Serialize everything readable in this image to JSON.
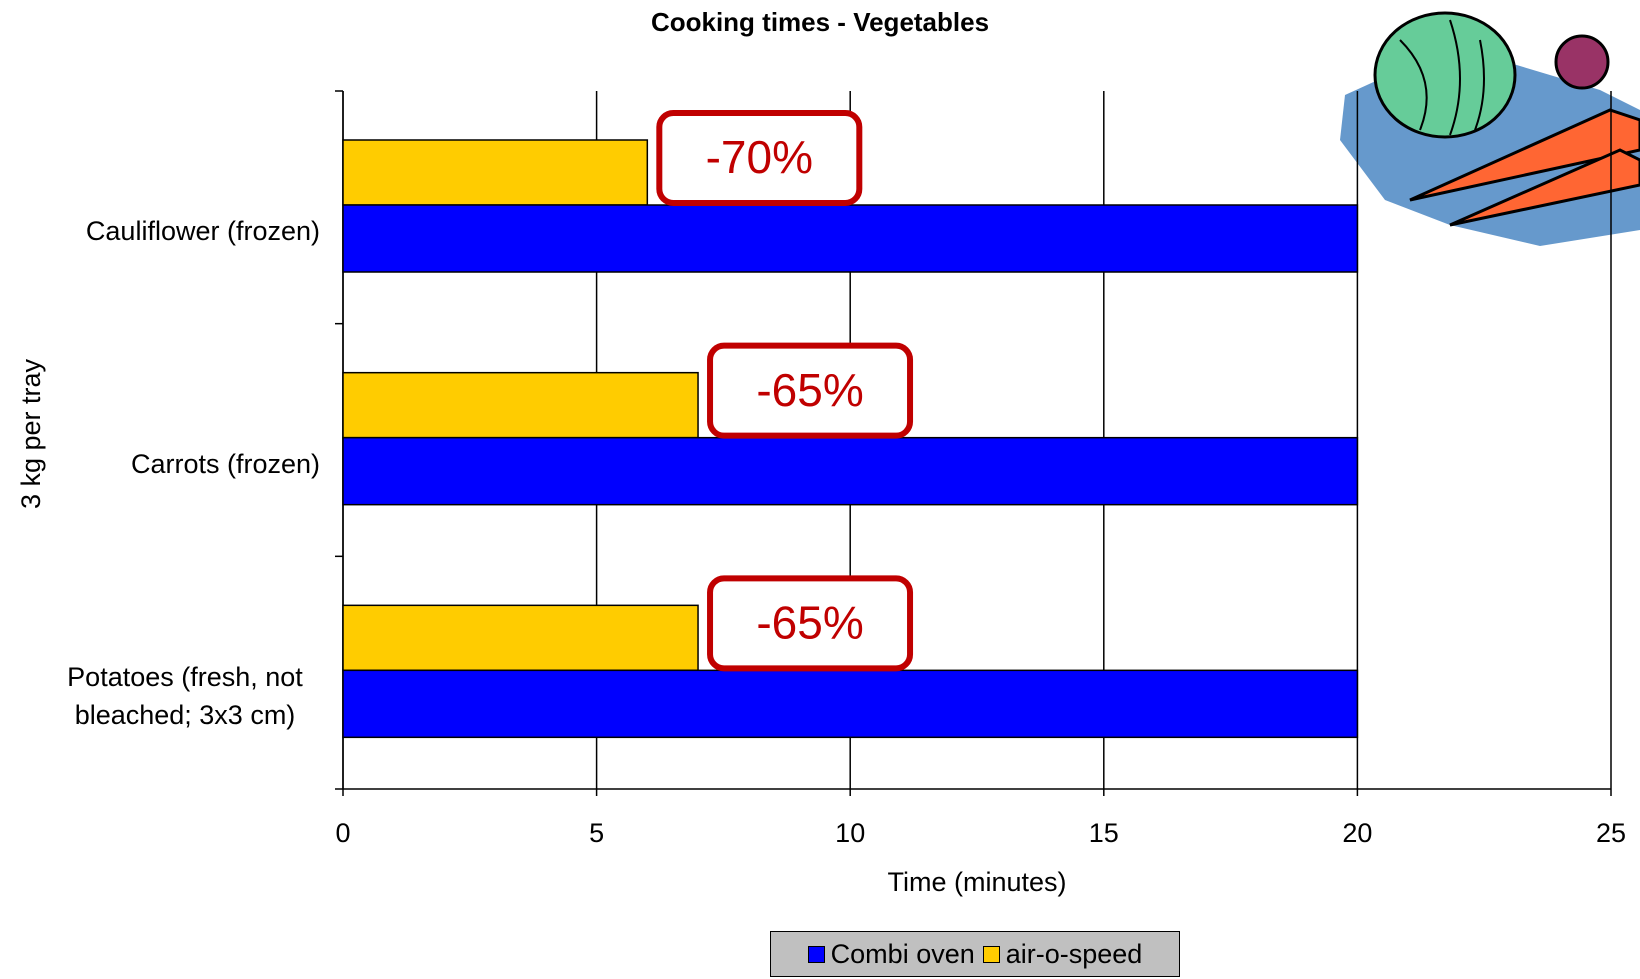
{
  "chart_data": {
    "type": "bar",
    "orientation": "horizontal",
    "title": "Cooking times - Vegetables",
    "x_label": "Time (minutes)",
    "y_label": "3 kg per tray",
    "categories": [
      "Cauliflower (frozen)",
      "Carrots (frozen)",
      "Potatoes (fresh, not bleached; 3x3 cm)"
    ],
    "series": [
      {
        "name": "Combi oven",
        "color": "#0000ff",
        "values": [
          20,
          20,
          20
        ]
      },
      {
        "name": "air-o-speed",
        "color": "#ffcc00",
        "values": [
          6,
          7,
          7
        ]
      }
    ],
    "annotations": [
      "-70%",
      "-65%",
      "-65%"
    ],
    "annotation_color": "#c00000",
    "xlim": [
      0,
      25
    ],
    "xticks": [
      0,
      5,
      10,
      15,
      20,
      25
    ],
    "grid": true,
    "legend": "bottom"
  }
}
